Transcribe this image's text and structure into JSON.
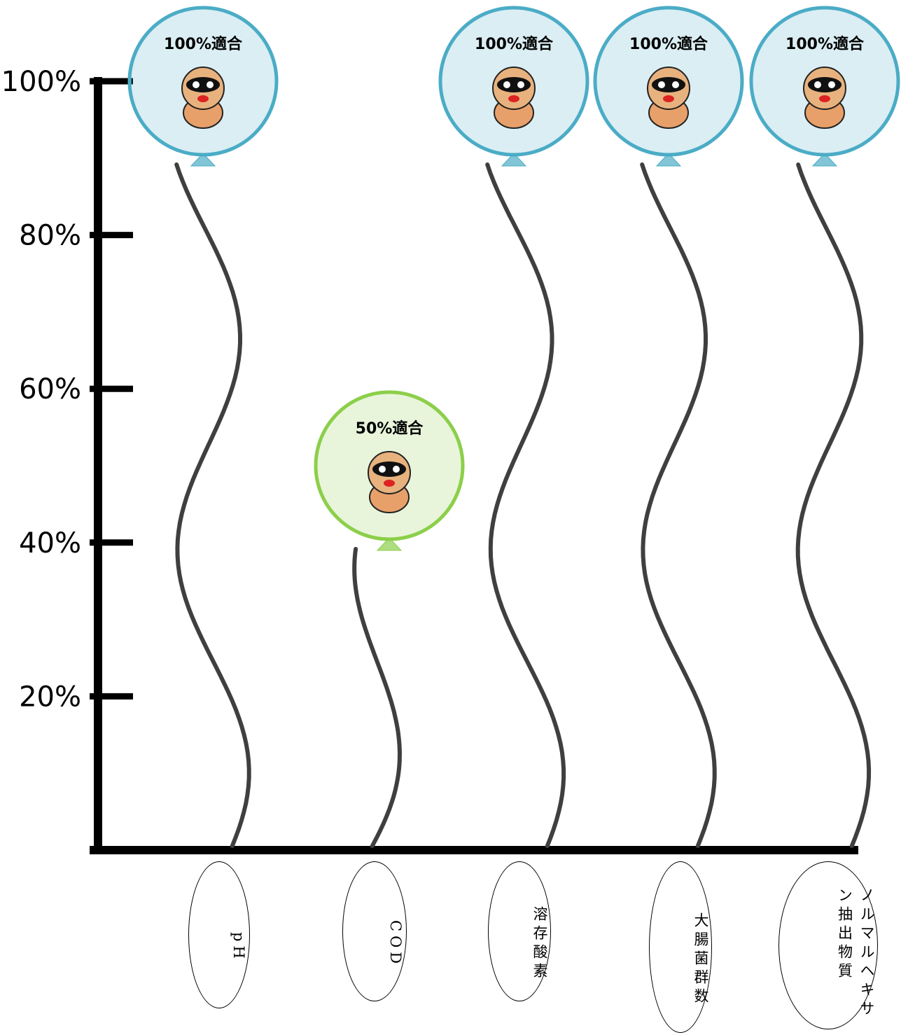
{
  "chart_data": {
    "type": "balloon",
    "categories": [
      "pH",
      "COD",
      "溶存酸素",
      "大腸菌群数",
      "ノルマルヘキサン抽出物質"
    ],
    "values": [
      100,
      50,
      100,
      100,
      100
    ],
    "value_labels": [
      "100%適合",
      "50%適合",
      "100%適合",
      "100%適合",
      "100%適合"
    ],
    "colors": [
      "#4bacc6",
      "#8ccf4a",
      "#4bacc6",
      "#4bacc6",
      "#4bacc6"
    ],
    "ylim": [
      0,
      100
    ],
    "yticks": [
      {
        "value": 20,
        "label": "20%"
      },
      {
        "value": 40,
        "label": "40%"
      },
      {
        "value": 60,
        "label": "60%"
      },
      {
        "value": 80,
        "label": "80%"
      },
      {
        "value": 100,
        "label": "100%"
      }
    ]
  }
}
